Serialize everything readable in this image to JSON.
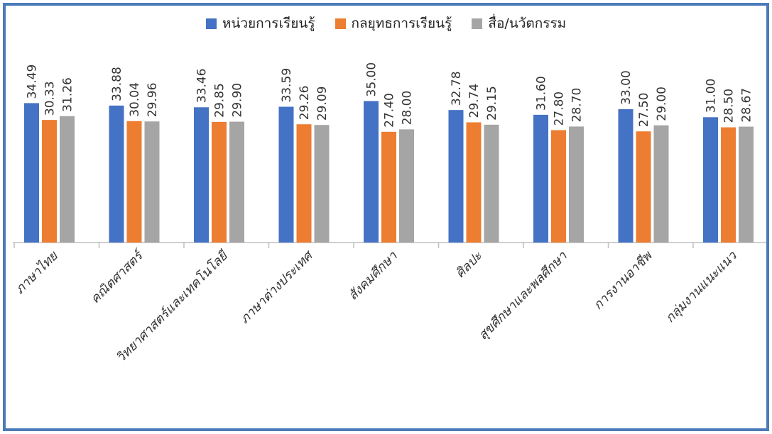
{
  "chart_data": {
    "type": "bar",
    "title": "",
    "xlabel": "",
    "ylabel": "",
    "ylim": [
      0,
      40
    ],
    "grid": false,
    "legend_position": "top",
    "categories": [
      "ภาษาไทย",
      "คณิตศาสตร์",
      "วิทยาศาสตร์และเทคโนโลยี",
      "ภาษาต่างประเทศ",
      "สังคมศึกษา",
      "ศิลปะ",
      "สุขศึกษาและพลศึกษา",
      "การงานอาชีพ",
      "กลุ่มงานแนะแนว"
    ],
    "series": [
      {
        "name": "หน่วยการเรียนรู้",
        "color": "#4472c4",
        "values": [
          34.49,
          33.88,
          33.46,
          33.59,
          35.0,
          32.78,
          31.6,
          33.0,
          31.0
        ]
      },
      {
        "name": "กลยุทธการเรียนรู้",
        "color": "#ed7d31",
        "values": [
          30.33,
          30.04,
          29.85,
          29.26,
          27.4,
          29.74,
          27.8,
          27.5,
          28.5
        ]
      },
      {
        "name": "สื่อ/นวัตกรรม",
        "color": "#a5a5a5",
        "values": [
          31.26,
          29.96,
          29.9,
          29.09,
          28.0,
          29.15,
          28.7,
          29.0,
          28.67
        ]
      }
    ],
    "value_labels": [
      [
        "34.49",
        "30.33",
        "31.26"
      ],
      [
        "33.88",
        "30.04",
        "29.96"
      ],
      [
        "33.46",
        "29.85",
        "29.90"
      ],
      [
        "33.59",
        "29.26",
        "29.09"
      ],
      [
        "35.00",
        "27.40",
        "28.00"
      ],
      [
        "32.78",
        "29.74",
        "29.15"
      ],
      [
        "31.60",
        "27.80",
        "28.70"
      ],
      [
        "33.00",
        "27.50",
        "29.00"
      ],
      [
        "31.00",
        "28.50",
        "28.67"
      ]
    ]
  }
}
